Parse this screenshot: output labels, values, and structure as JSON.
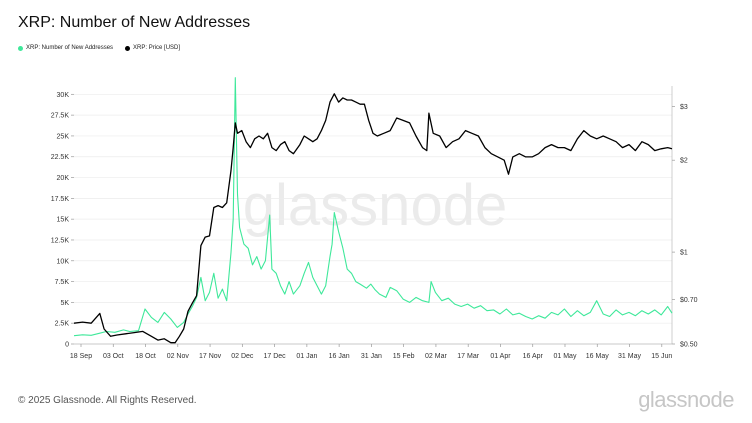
{
  "title": "XRP: Number of New Addresses",
  "legend": [
    {
      "label": "XRP: Number of New Addresses",
      "color": "#3ee89a"
    },
    {
      "label": "XRP: Price [USD]",
      "color": "#000000"
    }
  ],
  "watermark": "glassnode",
  "footer": {
    "copyright": "© 2025 Glassnode. All Rights Reserved.",
    "brand": "glassnode"
  },
  "chart_data": {
    "type": "line",
    "title": "XRP: Number of New Addresses",
    "grid": true,
    "legend_position": "top-left",
    "x_tick_labels": [
      "18 Sep",
      "03 Oct",
      "18 Oct",
      "02 Nov",
      "17 Nov",
      "02 Dec",
      "17 Dec",
      "01 Jan",
      "16 Jan",
      "31 Jan",
      "15 Feb",
      "02 Mar",
      "17 Mar",
      "01 Apr",
      "16 Apr",
      "01 May",
      "16 May",
      "31 May",
      "15 Jun"
    ],
    "y_left": {
      "ticks": [
        0,
        2500,
        5000,
        7500,
        10000,
        12500,
        15000,
        17500,
        20000,
        22500,
        25000,
        27500,
        30000
      ],
      "tick_labels": [
        "0",
        "2.5K",
        "5K",
        "7.5K",
        "10K",
        "12.5K",
        "15K",
        "17.5K",
        "20K",
        "22.5K",
        "25K",
        "27.5K",
        "30K"
      ],
      "range": [
        0,
        31000
      ]
    },
    "y_right": {
      "scale": "log",
      "ticks": [
        0.5,
        0.7,
        1,
        2,
        3
      ],
      "tick_labels": [
        "$0.50",
        "$0.70",
        "$1",
        "$2",
        "$3"
      ],
      "range": [
        0.5,
        3.5
      ]
    },
    "series": [
      {
        "name": "XRP: Number of New Addresses",
        "color": "#3ee89a",
        "axis": "left",
        "points": [
          [
            "2024-09-18",
            1000
          ],
          [
            "2024-09-22",
            1100
          ],
          [
            "2024-09-26",
            1050
          ],
          [
            "2024-09-30",
            1300
          ],
          [
            "2024-10-03",
            1500
          ],
          [
            "2024-10-07",
            1400
          ],
          [
            "2024-10-11",
            1700
          ],
          [
            "2024-10-14",
            1500
          ],
          [
            "2024-10-18",
            1600
          ],
          [
            "2024-10-21",
            4200
          ],
          [
            "2024-10-24",
            3200
          ],
          [
            "2024-10-27",
            2600
          ],
          [
            "2024-10-30",
            3800
          ],
          [
            "2024-11-02",
            3000
          ],
          [
            "2024-11-05",
            2000
          ],
          [
            "2024-11-08",
            2600
          ],
          [
            "2024-11-10",
            3600
          ],
          [
            "2024-11-12",
            4500
          ],
          [
            "2024-11-14",
            5600
          ],
          [
            "2024-11-16",
            8000
          ],
          [
            "2024-11-18",
            5200
          ],
          [
            "2024-11-20",
            6200
          ],
          [
            "2024-11-22",
            8500
          ],
          [
            "2024-11-24",
            5500
          ],
          [
            "2024-11-26",
            6600
          ],
          [
            "2024-11-28",
            5200
          ],
          [
            "2024-11-30",
            11000
          ],
          [
            "2024-12-01",
            15000
          ],
          [
            "2024-12-02",
            32000
          ],
          [
            "2024-12-03",
            18000
          ],
          [
            "2024-12-04",
            14000
          ],
          [
            "2024-12-06",
            12000
          ],
          [
            "2024-12-08",
            11500
          ],
          [
            "2024-12-10",
            9500
          ],
          [
            "2024-12-12",
            10500
          ],
          [
            "2024-12-14",
            9000
          ],
          [
            "2024-12-16",
            10000
          ],
          [
            "2024-12-18",
            15500
          ],
          [
            "2024-12-19",
            9000
          ],
          [
            "2024-12-21",
            8500
          ],
          [
            "2024-12-23",
            7000
          ],
          [
            "2024-12-25",
            6000
          ],
          [
            "2024-12-27",
            7500
          ],
          [
            "2024-12-29",
            6000
          ],
          [
            "2025-01-01",
            7000
          ],
          [
            "2025-01-03",
            8500
          ],
          [
            "2025-01-05",
            9800
          ],
          [
            "2025-01-07",
            8000
          ],
          [
            "2025-01-09",
            7000
          ],
          [
            "2025-01-11",
            6000
          ],
          [
            "2025-01-13",
            7000
          ],
          [
            "2025-01-15",
            10500
          ],
          [
            "2025-01-16",
            12000
          ],
          [
            "2025-01-17",
            15800
          ],
          [
            "2025-01-19",
            13500
          ],
          [
            "2025-01-21",
            11500
          ],
          [
            "2025-01-23",
            9000
          ],
          [
            "2025-01-25",
            8500
          ],
          [
            "2025-01-27",
            7500
          ],
          [
            "2025-01-29",
            7200
          ],
          [
            "2025-02-01",
            6700
          ],
          [
            "2025-02-03",
            7200
          ],
          [
            "2025-02-05",
            6500
          ],
          [
            "2025-02-07",
            6000
          ],
          [
            "2025-02-10",
            5600
          ],
          [
            "2025-02-12",
            6800
          ],
          [
            "2025-02-15",
            6400
          ],
          [
            "2025-02-18",
            5400
          ],
          [
            "2025-02-21",
            5000
          ],
          [
            "2025-02-24",
            5600
          ],
          [
            "2025-02-27",
            5200
          ],
          [
            "2025-03-02",
            5000
          ],
          [
            "2025-03-03",
            7500
          ],
          [
            "2025-03-05",
            6200
          ],
          [
            "2025-03-08",
            5200
          ],
          [
            "2025-03-11",
            5500
          ],
          [
            "2025-03-14",
            4800
          ],
          [
            "2025-03-17",
            4500
          ],
          [
            "2025-03-20",
            4800
          ],
          [
            "2025-03-23",
            4300
          ],
          [
            "2025-03-26",
            4600
          ],
          [
            "2025-03-29",
            4000
          ],
          [
            "2025-04-01",
            4100
          ],
          [
            "2025-04-04",
            3600
          ],
          [
            "2025-04-07",
            4200
          ],
          [
            "2025-04-10",
            3500
          ],
          [
            "2025-04-13",
            3700
          ],
          [
            "2025-04-16",
            3300
          ],
          [
            "2025-04-19",
            3000
          ],
          [
            "2025-04-22",
            3400
          ],
          [
            "2025-04-25",
            3100
          ],
          [
            "2025-04-28",
            3800
          ],
          [
            "2025-05-01",
            3500
          ],
          [
            "2025-05-04",
            4200
          ],
          [
            "2025-05-07",
            3300
          ],
          [
            "2025-05-10",
            4000
          ],
          [
            "2025-05-13",
            3400
          ],
          [
            "2025-05-16",
            3800
          ],
          [
            "2025-05-19",
            5200
          ],
          [
            "2025-05-22",
            3600
          ],
          [
            "2025-05-25",
            3300
          ],
          [
            "2025-05-28",
            4100
          ],
          [
            "2025-05-31",
            3500
          ],
          [
            "2025-06-03",
            3800
          ],
          [
            "2025-06-06",
            3400
          ],
          [
            "2025-06-09",
            4000
          ],
          [
            "2025-06-12",
            3600
          ],
          [
            "2025-06-15",
            4100
          ],
          [
            "2025-06-18",
            3500
          ],
          [
            "2025-06-21",
            4500
          ],
          [
            "2025-06-23",
            3700
          ]
        ]
      },
      {
        "name": "XRP: Price [USD]",
        "color": "#000000",
        "axis": "right",
        "points": [
          [
            "2024-09-18",
            0.585
          ],
          [
            "2024-09-22",
            0.59
          ],
          [
            "2024-09-26",
            0.585
          ],
          [
            "2024-09-30",
            0.63
          ],
          [
            "2024-10-02",
            0.56
          ],
          [
            "2024-10-05",
            0.53
          ],
          [
            "2024-10-08",
            0.535
          ],
          [
            "2024-10-12",
            0.54
          ],
          [
            "2024-10-16",
            0.545
          ],
          [
            "2024-10-20",
            0.55
          ],
          [
            "2024-10-24",
            0.53
          ],
          [
            "2024-10-27",
            0.515
          ],
          [
            "2024-10-30",
            0.52
          ],
          [
            "2024-11-02",
            0.505
          ],
          [
            "2024-11-04",
            0.505
          ],
          [
            "2024-11-06",
            0.53
          ],
          [
            "2024-11-08",
            0.56
          ],
          [
            "2024-11-10",
            0.64
          ],
          [
            "2024-11-12",
            0.68
          ],
          [
            "2024-11-14",
            0.72
          ],
          [
            "2024-11-16",
            1.05
          ],
          [
            "2024-11-18",
            1.12
          ],
          [
            "2024-11-20",
            1.13
          ],
          [
            "2024-11-22",
            1.4
          ],
          [
            "2024-11-24",
            1.42
          ],
          [
            "2024-11-26",
            1.4
          ],
          [
            "2024-11-28",
            1.45
          ],
          [
            "2024-11-30",
            1.85
          ],
          [
            "2024-12-01",
            2.2
          ],
          [
            "2024-12-02",
            2.65
          ],
          [
            "2024-12-03",
            2.45
          ],
          [
            "2024-12-05",
            2.5
          ],
          [
            "2024-12-07",
            2.3
          ],
          [
            "2024-12-09",
            2.2
          ],
          [
            "2024-12-11",
            2.35
          ],
          [
            "2024-12-13",
            2.4
          ],
          [
            "2024-12-15",
            2.35
          ],
          [
            "2024-12-17",
            2.45
          ],
          [
            "2024-12-19",
            2.2
          ],
          [
            "2024-12-21",
            2.15
          ],
          [
            "2024-12-23",
            2.25
          ],
          [
            "2024-12-25",
            2.3
          ],
          [
            "2024-12-27",
            2.15
          ],
          [
            "2024-12-29",
            2.1
          ],
          [
            "2025-01-01",
            2.25
          ],
          [
            "2025-01-03",
            2.4
          ],
          [
            "2025-01-05",
            2.35
          ],
          [
            "2025-01-07",
            2.3
          ],
          [
            "2025-01-09",
            2.35
          ],
          [
            "2025-01-11",
            2.5
          ],
          [
            "2025-01-13",
            2.7
          ],
          [
            "2025-01-15",
            3.1
          ],
          [
            "2025-01-17",
            3.3
          ],
          [
            "2025-01-19",
            3.1
          ],
          [
            "2025-01-21",
            3.2
          ],
          [
            "2025-01-23",
            3.15
          ],
          [
            "2025-01-25",
            3.15
          ],
          [
            "2025-01-27",
            3.1
          ],
          [
            "2025-01-29",
            3.05
          ],
          [
            "2025-01-31",
            3.05
          ],
          [
            "2025-02-02",
            2.7
          ],
          [
            "2025-02-04",
            2.45
          ],
          [
            "2025-02-06",
            2.4
          ],
          [
            "2025-02-09",
            2.45
          ],
          [
            "2025-02-12",
            2.5
          ],
          [
            "2025-02-15",
            2.75
          ],
          [
            "2025-02-18",
            2.7
          ],
          [
            "2025-02-21",
            2.65
          ],
          [
            "2025-02-24",
            2.4
          ],
          [
            "2025-02-27",
            2.2
          ],
          [
            "2025-03-01",
            2.15
          ],
          [
            "2025-03-02",
            2.85
          ],
          [
            "2025-03-04",
            2.45
          ],
          [
            "2025-03-07",
            2.4
          ],
          [
            "2025-03-10",
            2.2
          ],
          [
            "2025-03-13",
            2.3
          ],
          [
            "2025-03-16",
            2.35
          ],
          [
            "2025-03-19",
            2.5
          ],
          [
            "2025-03-22",
            2.45
          ],
          [
            "2025-03-25",
            2.4
          ],
          [
            "2025-03-28",
            2.2
          ],
          [
            "2025-03-31",
            2.1
          ],
          [
            "2025-04-03",
            2.05
          ],
          [
            "2025-04-06",
            2.0
          ],
          [
            "2025-04-08",
            1.8
          ],
          [
            "2025-04-10",
            2.05
          ],
          [
            "2025-04-13",
            2.1
          ],
          [
            "2025-04-16",
            2.05
          ],
          [
            "2025-04-19",
            2.05
          ],
          [
            "2025-04-22",
            2.1
          ],
          [
            "2025-04-25",
            2.2
          ],
          [
            "2025-04-28",
            2.25
          ],
          [
            "2025-05-01",
            2.2
          ],
          [
            "2025-05-04",
            2.2
          ],
          [
            "2025-05-07",
            2.15
          ],
          [
            "2025-05-10",
            2.35
          ],
          [
            "2025-05-13",
            2.5
          ],
          [
            "2025-05-16",
            2.4
          ],
          [
            "2025-05-19",
            2.35
          ],
          [
            "2025-05-22",
            2.4
          ],
          [
            "2025-05-25",
            2.35
          ],
          [
            "2025-05-28",
            2.3
          ],
          [
            "2025-05-31",
            2.2
          ],
          [
            "2025-06-03",
            2.25
          ],
          [
            "2025-06-06",
            2.15
          ],
          [
            "2025-06-09",
            2.3
          ],
          [
            "2025-06-12",
            2.25
          ],
          [
            "2025-06-15",
            2.15
          ],
          [
            "2025-06-18",
            2.18
          ],
          [
            "2025-06-21",
            2.2
          ],
          [
            "2025-06-23",
            2.18
          ]
        ]
      }
    ]
  }
}
